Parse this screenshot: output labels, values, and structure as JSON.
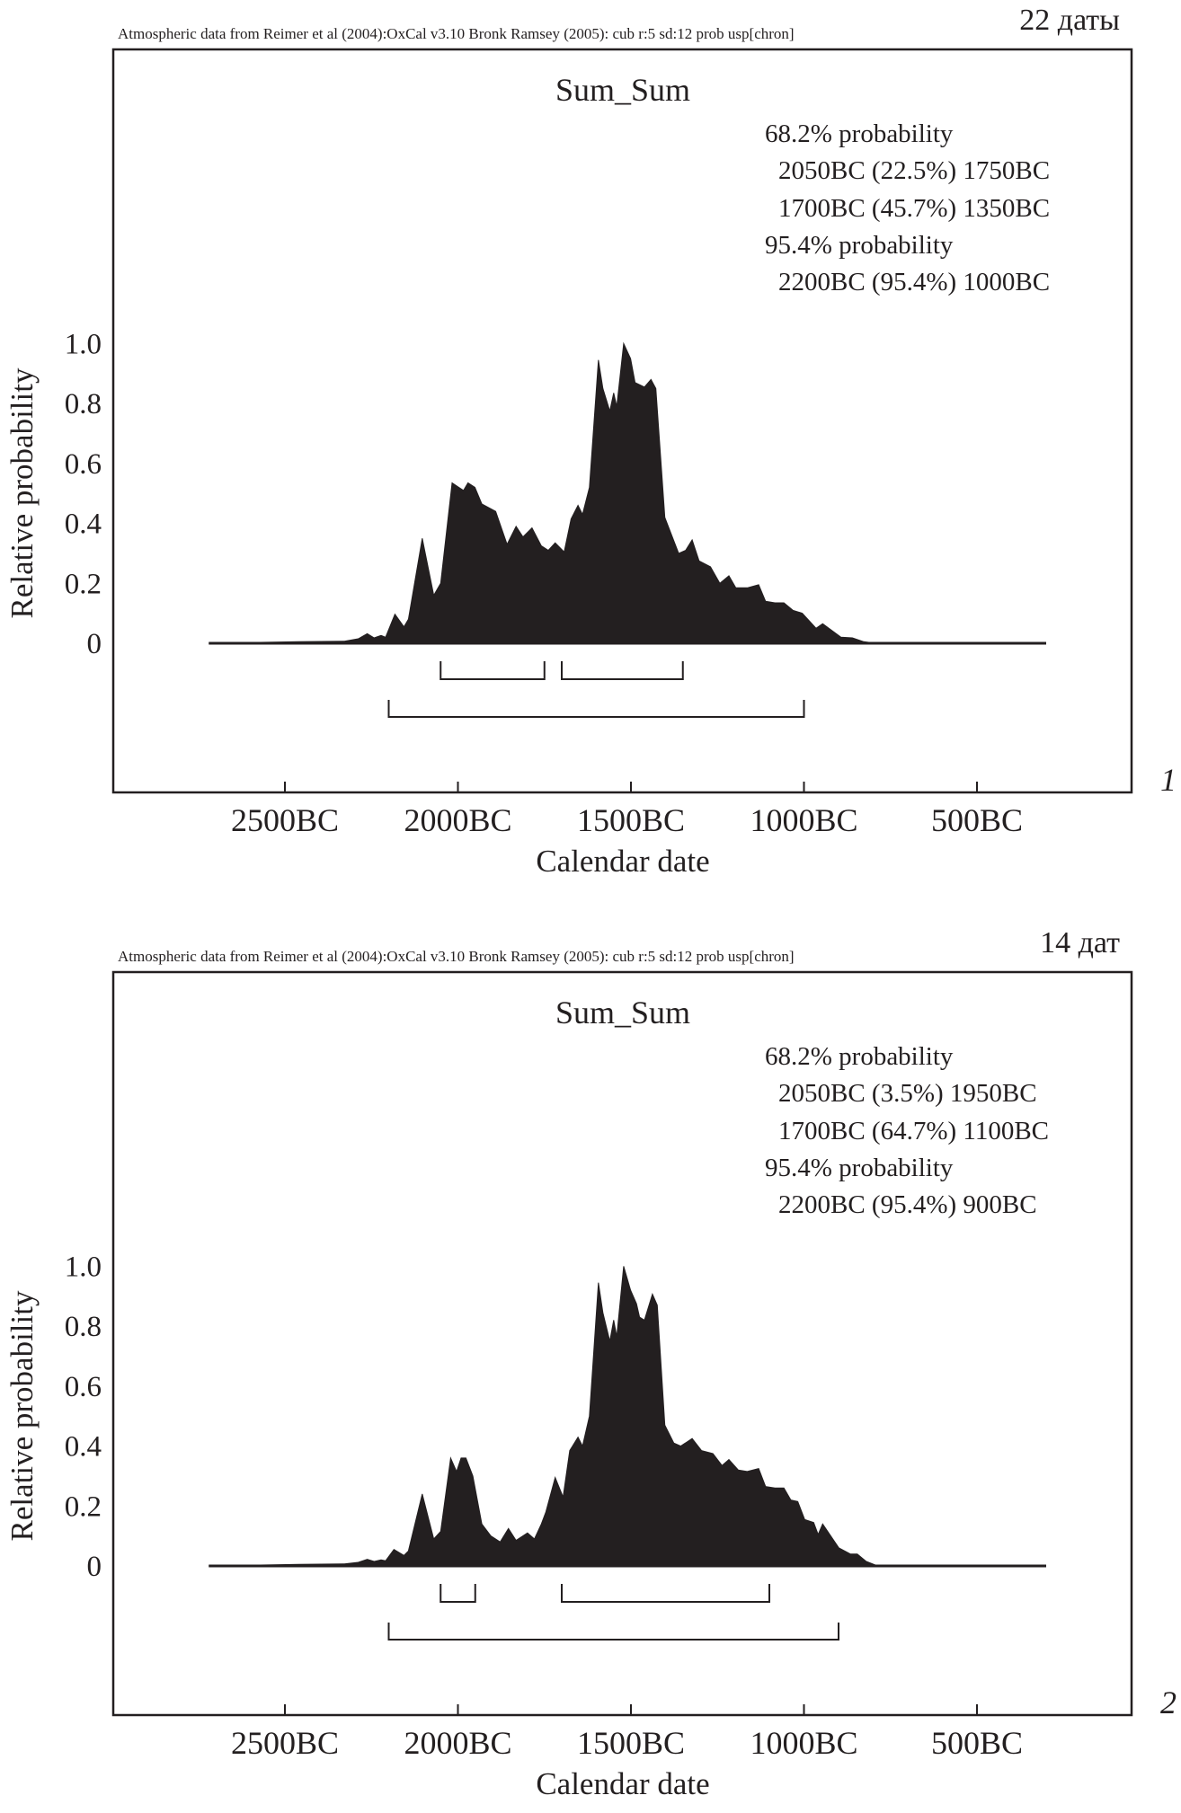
{
  "colors": {
    "ink": "#231f20",
    "highlight": "#e4202a"
  },
  "chart_data": [
    {
      "type": "area",
      "panel_number": "1",
      "count_label": "22 даты",
      "header": "Atmospheric data from Reimer et al (2004):OxCal v3.10 Bronk Ramsey (2005): cub r:5 sd:12 prob usp[chron]",
      "title": "Sum_Sum",
      "xlabel": "Calendar date",
      "ylabel": "Relative probability",
      "xlim_bc": [
        2800,
        200
      ],
      "ylim": [
        0,
        1.0
      ],
      "xticks": [
        "2500BC",
        "2000BC",
        "1500BC",
        "1000BC",
        "500BC"
      ],
      "xtick_values_bc": [
        2500,
        2000,
        1500,
        1000,
        500
      ],
      "yticks": [
        "0",
        "0.2",
        "0.4",
        "0.6",
        "0.8",
        "1.0"
      ],
      "ytick_values": [
        0,
        0.2,
        0.4,
        0.6,
        0.8,
        1.0
      ],
      "legend": [
        {
          "text": "68.2% probability",
          "indent": false,
          "highlight": false
        },
        {
          "text": "2050BC (22.5%) 1750BC",
          "indent": true,
          "highlight": true
        },
        {
          "text": "1700BC (45.7%) 1350BC",
          "indent": true,
          "highlight": true
        },
        {
          "text": "95.4% probability",
          "indent": false,
          "highlight": false
        },
        {
          "text": "2200BC (95.4%) 1000BC",
          "indent": true,
          "highlight": false
        }
      ],
      "ranges_68": [
        [
          2050,
          1750
        ],
        [
          1700,
          1350
        ]
      ],
      "ranges_95": [
        [
          2200,
          1000
        ]
      ],
      "series": {
        "name": "Sum_Sum",
        "bc": [
          2720,
          2460,
          2328,
          2288,
          2262,
          2242,
          2222,
          2209,
          2182,
          2156,
          2143,
          2103,
          2070,
          2050,
          2017,
          1984,
          1971,
          1951,
          1931,
          1891,
          1858,
          1832,
          1812,
          1786,
          1759,
          1739,
          1719,
          1693,
          1673,
          1653,
          1640,
          1620,
          1594,
          1581,
          1561,
          1550,
          1541,
          1521,
          1501,
          1488,
          1461,
          1442,
          1428,
          1402,
          1362,
          1342,
          1323,
          1303,
          1270,
          1243,
          1217,
          1197,
          1164,
          1131,
          1111,
          1084,
          1058,
          1032,
          1005,
          965,
          946,
          893,
          860,
          827,
          793,
          300
        ],
        "prob": [
          0,
          0.005,
          0.007,
          0.015,
          0.032,
          0.018,
          0.026,
          0.02,
          0.097,
          0.055,
          0.08,
          0.35,
          0.16,
          0.2,
          0.535,
          0.51,
          0.535,
          0.52,
          0.465,
          0.44,
          0.33,
          0.39,
          0.355,
          0.385,
          0.325,
          0.31,
          0.335,
          0.305,
          0.415,
          0.46,
          0.43,
          0.52,
          0.945,
          0.85,
          0.775,
          0.835,
          0.79,
          1.0,
          0.95,
          0.87,
          0.855,
          0.88,
          0.85,
          0.42,
          0.3,
          0.31,
          0.345,
          0.275,
          0.255,
          0.2,
          0.225,
          0.185,
          0.185,
          0.195,
          0.14,
          0.135,
          0.135,
          0.11,
          0.1,
          0.05,
          0.065,
          0.02,
          0.018,
          0.005,
          0,
          0
        ]
      }
    },
    {
      "type": "area",
      "panel_number": "2",
      "count_label": "14 дат",
      "header": "Atmospheric data from Reimer et al (2004):OxCal v3.10 Bronk Ramsey (2005): cub r:5 sd:12 prob usp[chron]",
      "title": "Sum_Sum",
      "xlabel": "Calendar date",
      "ylabel": "Relative probability",
      "xlim_bc": [
        2800,
        200
      ],
      "ylim": [
        0,
        1.0
      ],
      "xticks": [
        "2500BC",
        "2000BC",
        "1500BC",
        "1000BC",
        "500BC"
      ],
      "xtick_values_bc": [
        2500,
        2000,
        1500,
        1000,
        500
      ],
      "yticks": [
        "0",
        "0.2",
        "0.4",
        "0.6",
        "0.8",
        "1.0"
      ],
      "ytick_values": [
        0,
        0.2,
        0.4,
        0.6,
        0.8,
        1.0
      ],
      "legend": [
        {
          "text": "68.2% probability",
          "indent": false,
          "highlight": false
        },
        {
          "text": "2050BC (3.5%) 1950BC",
          "indent": true,
          "highlight": false
        },
        {
          "text": "1700BC (64.7%) 1100BC",
          "indent": true,
          "highlight": true
        },
        {
          "text": "95.4% probability",
          "indent": false,
          "highlight": false
        },
        {
          "text": "2200BC (95.4%) 900BC",
          "indent": true,
          "highlight": false
        }
      ],
      "ranges_68": [
        [
          2050,
          1950
        ],
        [
          1700,
          1100
        ]
      ],
      "ranges_95": [
        [
          2200,
          900
        ]
      ],
      "series": {
        "name": "Sum_Sum",
        "bc": [
          2720,
          2460,
          2328,
          2288,
          2262,
          2242,
          2222,
          2209,
          2185,
          2156,
          2143,
          2103,
          2070,
          2050,
          2021,
          2004,
          1991,
          1977,
          1957,
          1931,
          1905,
          1878,
          1854,
          1832,
          1799,
          1779,
          1759,
          1746,
          1719,
          1696,
          1677,
          1653,
          1640,
          1620,
          1594,
          1581,
          1561,
          1550,
          1541,
          1521,
          1501,
          1484,
          1475,
          1461,
          1438,
          1424,
          1402,
          1376,
          1356,
          1323,
          1296,
          1263,
          1237,
          1217,
          1190,
          1164,
          1131,
          1111,
          1084,
          1058,
          1038,
          1018,
          998,
          972,
          959,
          946,
          899,
          866,
          846,
          820,
          787,
          300
        ],
        "prob": [
          0,
          0.005,
          0.007,
          0.012,
          0.022,
          0.015,
          0.02,
          0.017,
          0.055,
          0.035,
          0.05,
          0.24,
          0.09,
          0.115,
          0.36,
          0.315,
          0.36,
          0.36,
          0.3,
          0.14,
          0.1,
          0.08,
          0.125,
          0.085,
          0.11,
          0.09,
          0.14,
          0.18,
          0.295,
          0.23,
          0.385,
          0.43,
          0.4,
          0.5,
          0.945,
          0.845,
          0.75,
          0.82,
          0.765,
          1.0,
          0.92,
          0.875,
          0.83,
          0.82,
          0.907,
          0.87,
          0.47,
          0.41,
          0.4,
          0.425,
          0.385,
          0.375,
          0.335,
          0.355,
          0.32,
          0.315,
          0.325,
          0.265,
          0.26,
          0.26,
          0.22,
          0.215,
          0.155,
          0.145,
          0.105,
          0.14,
          0.06,
          0.04,
          0.04,
          0.015,
          0,
          0
        ]
      }
    }
  ]
}
